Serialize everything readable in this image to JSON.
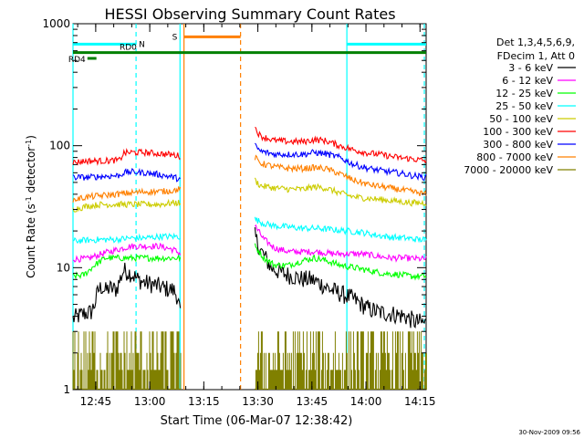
{
  "chart_data": {
    "type": "line",
    "title": "HESSI Observing Summary Count Rates",
    "xlabel": "Start Time (06-Mar-07 12:38:42)",
    "ylabel_parts": [
      "Count Rate (s",
      "-1",
      " detector",
      "-1",
      ")"
    ],
    "yscale": "log",
    "ylim": [
      1,
      1000
    ],
    "y_tick_labels": [
      "1",
      "10",
      "100",
      "1000"
    ],
    "xlim_minutes": [
      0,
      98
    ],
    "x_ticks": [
      {
        "label": "12:45",
        "minute": 6.3
      },
      {
        "label": "13:00",
        "minute": 21.3
      },
      {
        "label": "13:15",
        "minute": 36.3
      },
      {
        "label": "13:30",
        "minute": 51.3
      },
      {
        "label": "13:45",
        "minute": 66.3
      },
      {
        "label": "14:00",
        "minute": 81.3
      },
      {
        "label": "14:15",
        "minute": 96.3
      }
    ],
    "legend": {
      "placement": "right",
      "header": [
        "Det 1,3,4,5,6,9,",
        "FDecim 1, Att 0"
      ]
    },
    "data_gap_minutes": [
      30,
      50.5
    ],
    "series": [
      {
        "name": "3 - 6 keV",
        "color": "#000000",
        "points": [
          [
            0,
            3.8
          ],
          [
            3,
            4.2
          ],
          [
            5,
            4.3
          ],
          [
            6,
            5.0
          ],
          [
            7,
            6.5
          ],
          [
            8,
            7.0
          ],
          [
            9,
            6.4
          ],
          [
            10,
            6.8
          ],
          [
            12,
            6.6
          ],
          [
            14,
            9.5
          ],
          [
            16,
            9.0
          ],
          [
            18,
            8.0
          ],
          [
            20,
            7.5
          ],
          [
            22,
            7.3
          ],
          [
            24,
            7.0
          ],
          [
            26,
            6.7
          ],
          [
            28,
            6.5
          ],
          [
            29,
            5.8
          ],
          [
            29.8,
            4.2
          ]
        ],
        "points2": [
          [
            50.5,
            18
          ],
          [
            52,
            14
          ],
          [
            55,
            10
          ],
          [
            58,
            9.0
          ],
          [
            61,
            8.5
          ],
          [
            64,
            8.0
          ],
          [
            66,
            8.0
          ],
          [
            68,
            7.6
          ],
          [
            70,
            7.0
          ],
          [
            72,
            6.5
          ],
          [
            75,
            6.0
          ],
          [
            78,
            5.5
          ],
          [
            80,
            5.0
          ],
          [
            82,
            4.6
          ],
          [
            85,
            4.3
          ],
          [
            88,
            4.2
          ],
          [
            92,
            4.0
          ],
          [
            95,
            3.6
          ],
          [
            98,
            3.5
          ]
        ]
      },
      {
        "name": "6 - 12 keV",
        "color": "#ff00ff",
        "points": [
          [
            0,
            11.8
          ],
          [
            4,
            11.8
          ],
          [
            8,
            13
          ],
          [
            12,
            14
          ],
          [
            16,
            15
          ],
          [
            20,
            15
          ],
          [
            24,
            15
          ],
          [
            26,
            14.5
          ],
          [
            28,
            14
          ],
          [
            29.8,
            13
          ]
        ],
        "points2": [
          [
            50.5,
            22
          ],
          [
            53,
            17
          ],
          [
            56,
            14.5
          ],
          [
            60,
            13.5
          ],
          [
            64,
            13.5
          ],
          [
            68,
            13.5
          ],
          [
            72,
            13
          ],
          [
            76,
            13
          ],
          [
            80,
            13
          ],
          [
            84,
            12.5
          ],
          [
            88,
            12
          ],
          [
            92,
            12
          ],
          [
            96,
            11.8
          ],
          [
            98,
            11.8
          ]
        ]
      },
      {
        "name": "12 - 25 keV",
        "color": "#00ff00",
        "points": [
          [
            0,
            8.5
          ],
          [
            3,
            8.7
          ],
          [
            6,
            10.5
          ],
          [
            9,
            12
          ],
          [
            12,
            12
          ],
          [
            16,
            12
          ],
          [
            20,
            12
          ],
          [
            24,
            12
          ],
          [
            28,
            12
          ],
          [
            29.8,
            12
          ]
        ],
        "points2": [
          [
            50.5,
            15
          ],
          [
            53,
            12
          ],
          [
            56,
            10.5
          ],
          [
            60,
            10.5
          ],
          [
            64,
            11.5
          ],
          [
            67,
            12
          ],
          [
            70,
            11.5
          ],
          [
            74,
            10.5
          ],
          [
            78,
            10
          ],
          [
            82,
            9.5
          ],
          [
            86,
            9
          ],
          [
            90,
            8.8
          ],
          [
            94,
            8.5
          ],
          [
            98,
            8.5
          ]
        ]
      },
      {
        "name": "25 - 50 keV",
        "color": "#00ffff",
        "points": [
          [
            0,
            16.5
          ],
          [
            4,
            16.8
          ],
          [
            8,
            17
          ],
          [
            12,
            17
          ],
          [
            16,
            17.5
          ],
          [
            20,
            17.5
          ],
          [
            24,
            18
          ],
          [
            28,
            18
          ],
          [
            29.8,
            18
          ]
        ],
        "points2": [
          [
            50.5,
            25
          ],
          [
            53,
            23
          ],
          [
            56,
            22
          ],
          [
            60,
            21.5
          ],
          [
            64,
            21
          ],
          [
            68,
            21
          ],
          [
            72,
            20.5
          ],
          [
            76,
            20
          ],
          [
            80,
            19.5
          ],
          [
            84,
            18.5
          ],
          [
            88,
            17.8
          ],
          [
            92,
            17.5
          ],
          [
            96,
            17
          ],
          [
            98,
            17
          ]
        ]
      },
      {
        "name": "50 - 100 keV",
        "color": "#cccc00",
        "points": [
          [
            0,
            30
          ],
          [
            4,
            32
          ],
          [
            8,
            33
          ],
          [
            12,
            33
          ],
          [
            16,
            33
          ],
          [
            20,
            33
          ],
          [
            24,
            33
          ],
          [
            28,
            34
          ],
          [
            29.8,
            34
          ]
        ],
        "points2": [
          [
            50.5,
            52
          ],
          [
            52,
            47
          ],
          [
            56,
            45
          ],
          [
            60,
            44
          ],
          [
            64,
            44
          ],
          [
            67,
            46
          ],
          [
            70,
            45
          ],
          [
            74,
            41
          ],
          [
            78,
            38
          ],
          [
            82,
            37
          ],
          [
            86,
            36
          ],
          [
            90,
            35
          ],
          [
            94,
            34
          ],
          [
            98,
            34
          ]
        ]
      },
      {
        "name": "100 - 300 keV",
        "color": "#ff0000",
        "points": [
          [
            0,
            73
          ],
          [
            4,
            75
          ],
          [
            8,
            75
          ],
          [
            13,
            76
          ],
          [
            14,
            87
          ],
          [
            16,
            88
          ],
          [
            20,
            88
          ],
          [
            24,
            86
          ],
          [
            28,
            84
          ],
          [
            29.8,
            82
          ]
        ],
        "points2": [
          [
            50.5,
            140
          ],
          [
            52,
            120
          ],
          [
            56,
            110
          ],
          [
            60,
            108
          ],
          [
            64,
            108
          ],
          [
            67,
            112
          ],
          [
            70,
            110
          ],
          [
            74,
            100
          ],
          [
            78,
            92
          ],
          [
            82,
            87
          ],
          [
            86,
            84
          ],
          [
            90,
            80
          ],
          [
            94,
            78
          ],
          [
            98,
            75
          ]
        ]
      },
      {
        "name": "300 - 800 keV",
        "color": "#0000ff",
        "points": [
          [
            0,
            55
          ],
          [
            4,
            55
          ],
          [
            8,
            56
          ],
          [
            13,
            57
          ],
          [
            14,
            60
          ],
          [
            16,
            61
          ],
          [
            20,
            60
          ],
          [
            24,
            58
          ],
          [
            28,
            55
          ],
          [
            29.8,
            53
          ]
        ],
        "points2": [
          [
            50.5,
            100
          ],
          [
            52,
            90
          ],
          [
            56,
            85
          ],
          [
            60,
            85
          ],
          [
            64,
            85
          ],
          [
            67,
            88
          ],
          [
            70,
            86
          ],
          [
            74,
            80
          ],
          [
            78,
            70
          ],
          [
            82,
            65
          ],
          [
            86,
            62
          ],
          [
            90,
            60
          ],
          [
            94,
            57
          ],
          [
            98,
            55
          ]
        ]
      },
      {
        "name": "800 - 7000 keV",
        "color": "#ff8000",
        "points": [
          [
            0,
            36
          ],
          [
            4,
            38
          ],
          [
            8,
            39
          ],
          [
            12,
            40
          ],
          [
            16,
            41
          ],
          [
            20,
            42
          ],
          [
            24,
            42
          ],
          [
            28,
            43
          ],
          [
            29.8,
            44
          ]
        ],
        "points2": [
          [
            50.5,
            80
          ],
          [
            52,
            72
          ],
          [
            56,
            67
          ],
          [
            60,
            65
          ],
          [
            64,
            65
          ],
          [
            67,
            66
          ],
          [
            70,
            65
          ],
          [
            74,
            59
          ],
          [
            78,
            52
          ],
          [
            82,
            48
          ],
          [
            86,
            46
          ],
          [
            90,
            44
          ],
          [
            94,
            42
          ],
          [
            98,
            40
          ]
        ]
      },
      {
        "name": "7000 - 20000 keV",
        "color": "#808000",
        "points": [
          [
            0,
            1.4
          ],
          [
            29.8,
            1.4
          ]
        ],
        "points2": [
          [
            50.5,
            1.4
          ],
          [
            98,
            1.4
          ]
        ]
      }
    ],
    "annotations": [
      {
        "label": "N",
        "color": "#00ffff",
        "level": 680,
        "segments": [
          [
            0,
            17.5
          ],
          [
            76,
            98
          ]
        ]
      },
      {
        "label": "S",
        "color": "#ff8000",
        "level": 780,
        "segments": [
          [
            30.8,
            46.5
          ]
        ]
      },
      {
        "label": "RD0",
        "color": "#008000",
        "level": 580,
        "segments": [
          [
            0,
            98
          ]
        ]
      },
      {
        "label": "RD4",
        "color": "#008000",
        "level": 520,
        "segments": [
          [
            4,
            6.5
          ]
        ]
      }
    ],
    "vlines": [
      {
        "minute": 0,
        "color": "#00ffff",
        "style": "solid"
      },
      {
        "minute": 17.5,
        "color": "#00ffff",
        "style": "dashed"
      },
      {
        "minute": 29.7,
        "color": "#00ffff",
        "style": "solid"
      },
      {
        "minute": 76,
        "color": "#00ffff",
        "style": "solid"
      },
      {
        "minute": 97.5,
        "color": "#00ffff",
        "style": "dashed"
      },
      {
        "minute": 30.8,
        "color": "#ff8000",
        "style": "solid"
      },
      {
        "minute": 46.5,
        "color": "#ff8000",
        "style": "dashed"
      }
    ]
  },
  "timestamp": "30-Nov-2009 09:56"
}
